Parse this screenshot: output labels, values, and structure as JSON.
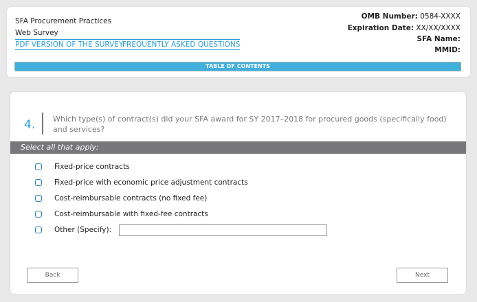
{
  "header": {
    "title_line1": "SFA Procurement Practices",
    "title_line2": "Web Survey",
    "links": [
      "PDF VERSION OF THE SURVEY",
      "FREQUENTLY ASKED QUESTIONS"
    ],
    "omb_label": "OMB Number:",
    "omb_value": "0584-XXXX",
    "exp_label": "Expiration Date:",
    "exp_value": "XX/XX/XXXX",
    "sfa_label": "SFA Name:",
    "mmid_label": "MMID:",
    "toc_label": "TABLE OF CONTENTS"
  },
  "question": {
    "number": "4.",
    "text": "Which type(s) of contract(s) did your SFA award for SY 2017–2018 for procured goods (specifically food) and services?",
    "instruction": "Select all that apply:",
    "options": [
      "Fixed-price contracts",
      "Fixed-price with economic price adjustment contracts",
      "Cost-reimbursable contracts (no fixed fee)",
      "Cost-reimbursable with fixed-fee contracts",
      "Other (Specify):"
    ],
    "other_value": ""
  },
  "nav": {
    "back": "Back",
    "next": "Next"
  },
  "colors": {
    "accent": "#2a9fd6",
    "toc_bar": "#41b0dc",
    "instruction_bar": "#77777b"
  }
}
